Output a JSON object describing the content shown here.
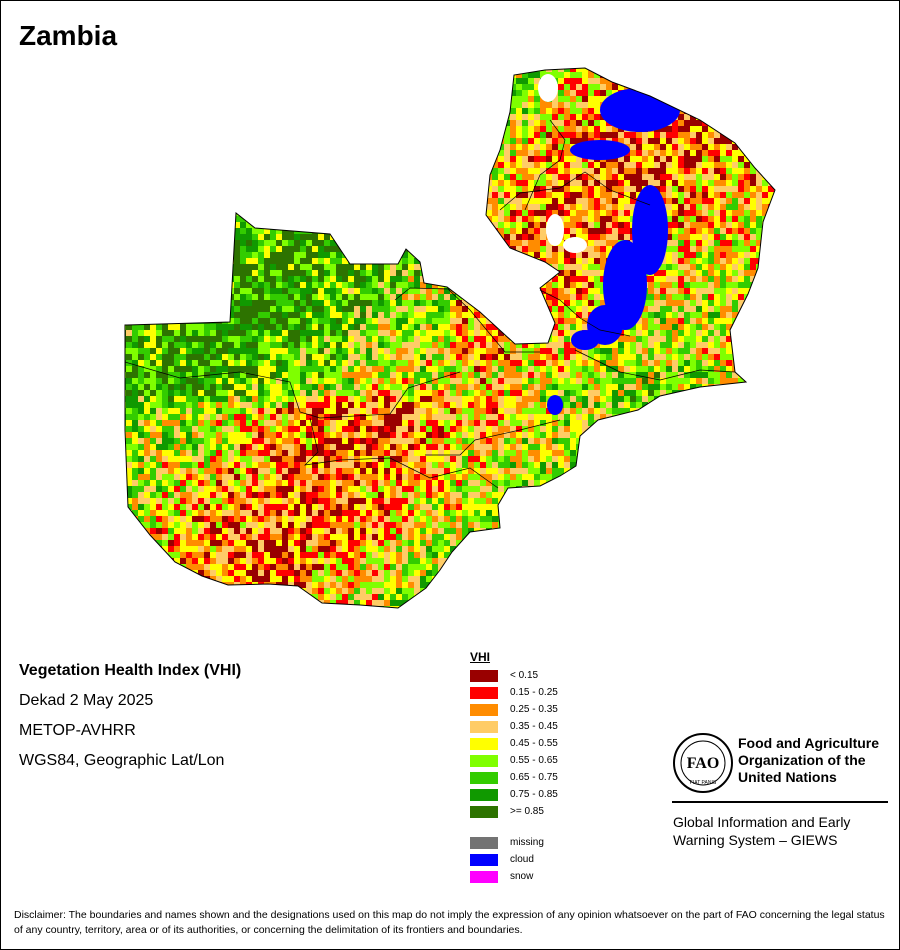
{
  "map": {
    "title": "Zambia",
    "subtitle_lines": [
      "Vegetation Health Index (VHI)",
      "Dekad 2 May 2025",
      "METOP-AVHRR",
      "WGS84, Geographic Lat/Lon"
    ],
    "region": "Zambia",
    "layer": "VHI"
  },
  "legend": {
    "title": "VHI",
    "classes": [
      {
        "label": "< 0.15",
        "color": "#990000"
      },
      {
        "label": "0.15 - 0.25",
        "color": "#ff0000"
      },
      {
        "label": "0.25 - 0.35",
        "color": "#ff8c00"
      },
      {
        "label": "0.35 - 0.45",
        "color": "#ffcc66"
      },
      {
        "label": "0.45 - 0.55",
        "color": "#ffff00"
      },
      {
        "label": "0.55 - 0.65",
        "color": "#7fff00"
      },
      {
        "label": "0.65 - 0.75",
        "color": "#33cc00"
      },
      {
        "label": "0.75 - 0.85",
        "color": "#109900"
      },
      {
        "label": ">= 0.85",
        "color": "#2d7300"
      }
    ],
    "special": [
      {
        "label": "missing",
        "color": "#737373"
      },
      {
        "label": "cloud",
        "color": "#0000ff"
      },
      {
        "label": "snow",
        "color": "#ff00ff"
      }
    ]
  },
  "org": {
    "logo_text": "FAO",
    "logo_motto": "FIAT PANIS",
    "name_lines": [
      "Food and Agriculture",
      "Organization of the",
      "United Nations"
    ],
    "system_lines": [
      "Global Information and Early",
      "Warning System – GIEWS"
    ]
  },
  "disclaimer": "Disclaimer: The boundaries and names shown and the designations used on this map do not imply the expression of any opinion whatsoever on the part of FAO concerning the legal status of any country, territory, area or of its authorities, or concerning the delimitation of its frontiers and boundaries."
}
